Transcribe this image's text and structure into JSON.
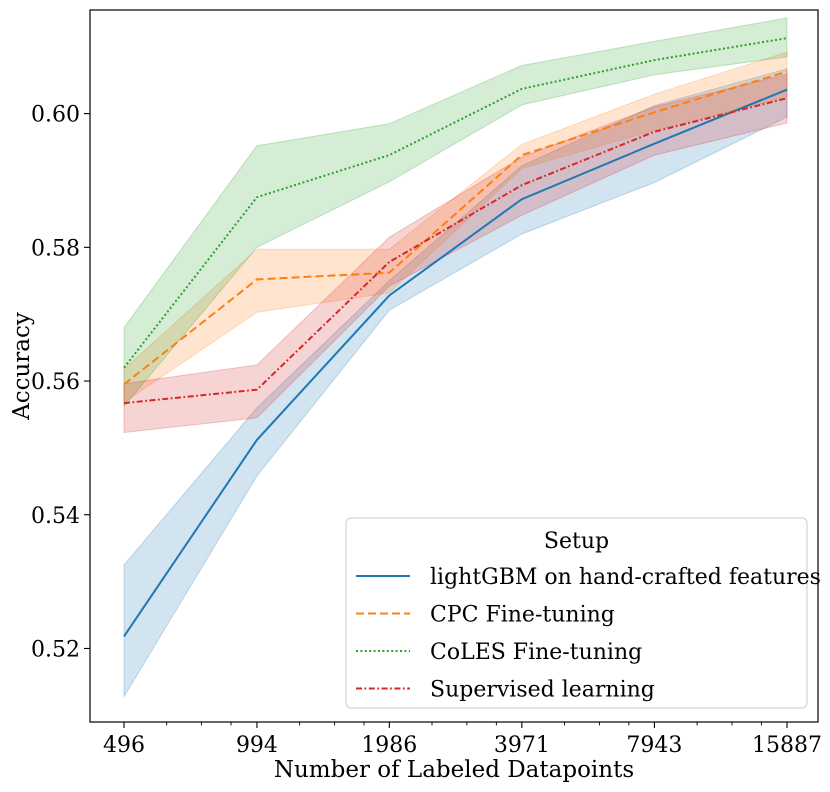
{
  "chart_data": {
    "type": "line",
    "title": "",
    "xlabel": "Number of Labeled Datapoints",
    "ylabel": "Accuracy",
    "x_scale": "log",
    "x": [
      496,
      994,
      1986,
      3971,
      7943,
      15887
    ],
    "x_tick_labels": [
      "496",
      "994",
      "1986",
      "3971",
      "7943",
      "15887"
    ],
    "ylim": [
      0.509,
      0.6155
    ],
    "y_ticks": [
      0.52,
      0.54,
      0.56,
      0.58,
      0.6
    ],
    "y_tick_labels": [
      "0.52",
      "0.54",
      "0.56",
      "0.58",
      "0.60"
    ],
    "grid": false,
    "legend": {
      "title": "Setup",
      "placement": "lower right"
    },
    "series": [
      {
        "name": "lightGBM on hand-crafted features",
        "color": "#1f77b4",
        "line_style": "solid",
        "values": [
          0.5218,
          0.5512,
          0.5728,
          0.5872,
          0.5955,
          0.6036
        ],
        "band_lower": [
          0.5128,
          0.5458,
          0.5706,
          0.582,
          0.5897,
          0.5995
        ],
        "band_upper": [
          0.5325,
          0.556,
          0.575,
          0.5922,
          0.6012,
          0.6067
        ]
      },
      {
        "name": "CPC Fine-tuning",
        "color": "#ff7f0e",
        "line_style": "dashed",
        "values": [
          0.5595,
          0.5752,
          0.5762,
          0.5938,
          0.6002,
          0.6063
        ],
        "band_lower": [
          0.5568,
          0.5703,
          0.5732,
          0.5918,
          0.5975,
          0.6025
        ],
        "band_upper": [
          0.5618,
          0.5797,
          0.5797,
          0.5954,
          0.6029,
          0.6092
        ]
      },
      {
        "name": "CoLES Fine-tuning",
        "color": "#2ca02c",
        "line_style": "dotted",
        "values": [
          0.562,
          0.5875,
          0.5938,
          0.6037,
          0.608,
          0.6113
        ],
        "band_lower": [
          0.5562,
          0.58,
          0.5898,
          0.6013,
          0.6058,
          0.6085
        ],
        "band_upper": [
          0.568,
          0.5952,
          0.5985,
          0.6072,
          0.6108,
          0.6143
        ]
      },
      {
        "name": "Supervised learning",
        "color": "#d62728",
        "line_style": "dashdot",
        "values": [
          0.5567,
          0.5587,
          0.5778,
          0.5893,
          0.5973,
          0.6023
        ],
        "band_lower": [
          0.5523,
          0.5545,
          0.5742,
          0.5848,
          0.5938,
          0.5986
        ],
        "band_upper": [
          0.5596,
          0.5624,
          0.5815,
          0.5935,
          0.601,
          0.6059
        ]
      }
    ]
  }
}
